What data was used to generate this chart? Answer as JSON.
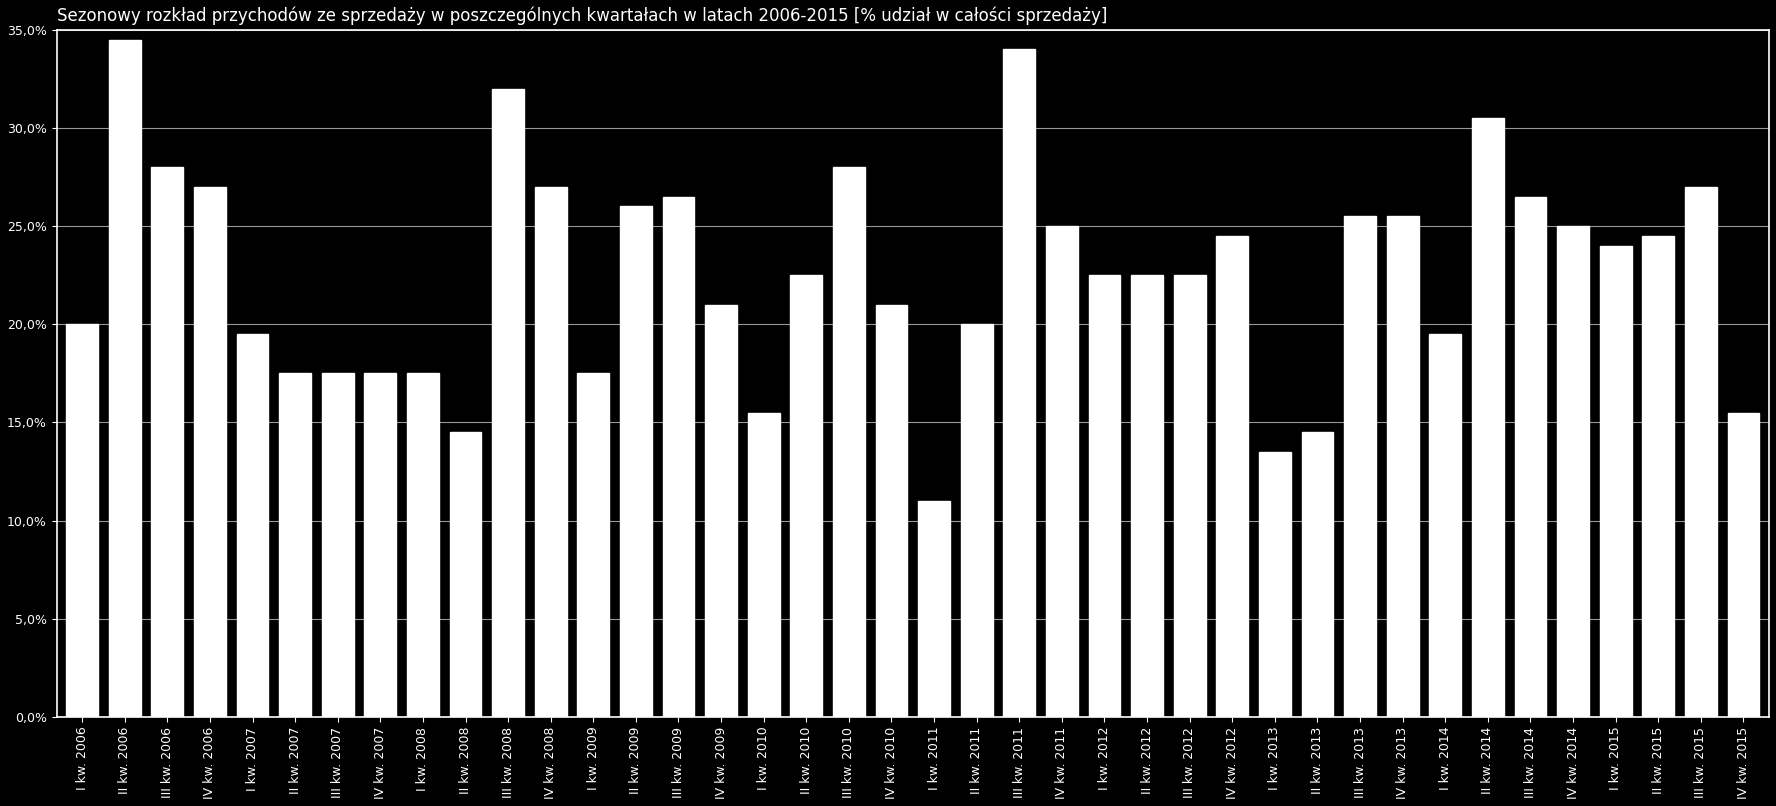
{
  "title": "Sezonowy rozkład przychodów ze sprzedaży w poszczególnych kwartałach w latach 2006-2015 [% udział w całości sprzedaży]",
  "values": [
    20.0,
    34.5,
    28.0,
    27.0,
    19.5,
    17.5,
    17.5,
    17.5,
    17.5,
    14.5,
    32.0,
    27.0,
    17.5,
    26.0,
    26.5,
    21.0,
    15.5,
    22.5,
    28.0,
    21.0,
    11.0,
    20.0,
    34.0,
    25.0,
    22.5,
    22.5,
    22.5,
    24.5,
    13.5,
    14.5,
    25.5,
    25.5,
    19.5,
    30.5,
    26.5,
    25.0,
    24.0,
    24.5,
    27.0,
    15.5
  ],
  "labels": [
    "I kw. 2006",
    "II kw. 2006",
    "III kw. 2006",
    "IV kw. 2006",
    "I kw. 2007",
    "II kw. 2007",
    "III kw. 2007",
    "IV kw. 2007",
    "I kw. 2008",
    "II kw. 2008",
    "III kw. 2008",
    "IV kw. 2008",
    "I kw. 2009",
    "II kw. 2009",
    "III kw. 2009",
    "IV kw. 2009",
    "I kw. 2010",
    "II kw. 2010",
    "III kw. 2010",
    "IV kw. 2010",
    "I kw. 2011",
    "II kw. 2011",
    "III kw. 2011",
    "IV kw. 2011",
    "I kw. 2012",
    "II kw. 2012",
    "III kw. 2012",
    "IV kw. 2012",
    "I kw. 2013",
    "II kw. 2013",
    "III kw. 2013",
    "IV kw. 2013",
    "I kw. 2014",
    "II kw. 2014",
    "III kw. 2014",
    "IV kw. 2014",
    "I kw. 2015",
    "II kw. 2015",
    "III kw. 2015",
    "IV kw. 2015"
  ],
  "bar_color": "#ffffff",
  "background_color": "#000000",
  "text_color": "#ffffff",
  "grid_color": "#ffffff",
  "ylim": [
    0,
    35.0
  ],
  "yticks": [
    0.0,
    5.0,
    10.0,
    15.0,
    20.0,
    25.0,
    30.0,
    35.0
  ],
  "title_fontsize": 12,
  "tick_fontsize": 9,
  "bar_width": 0.75
}
